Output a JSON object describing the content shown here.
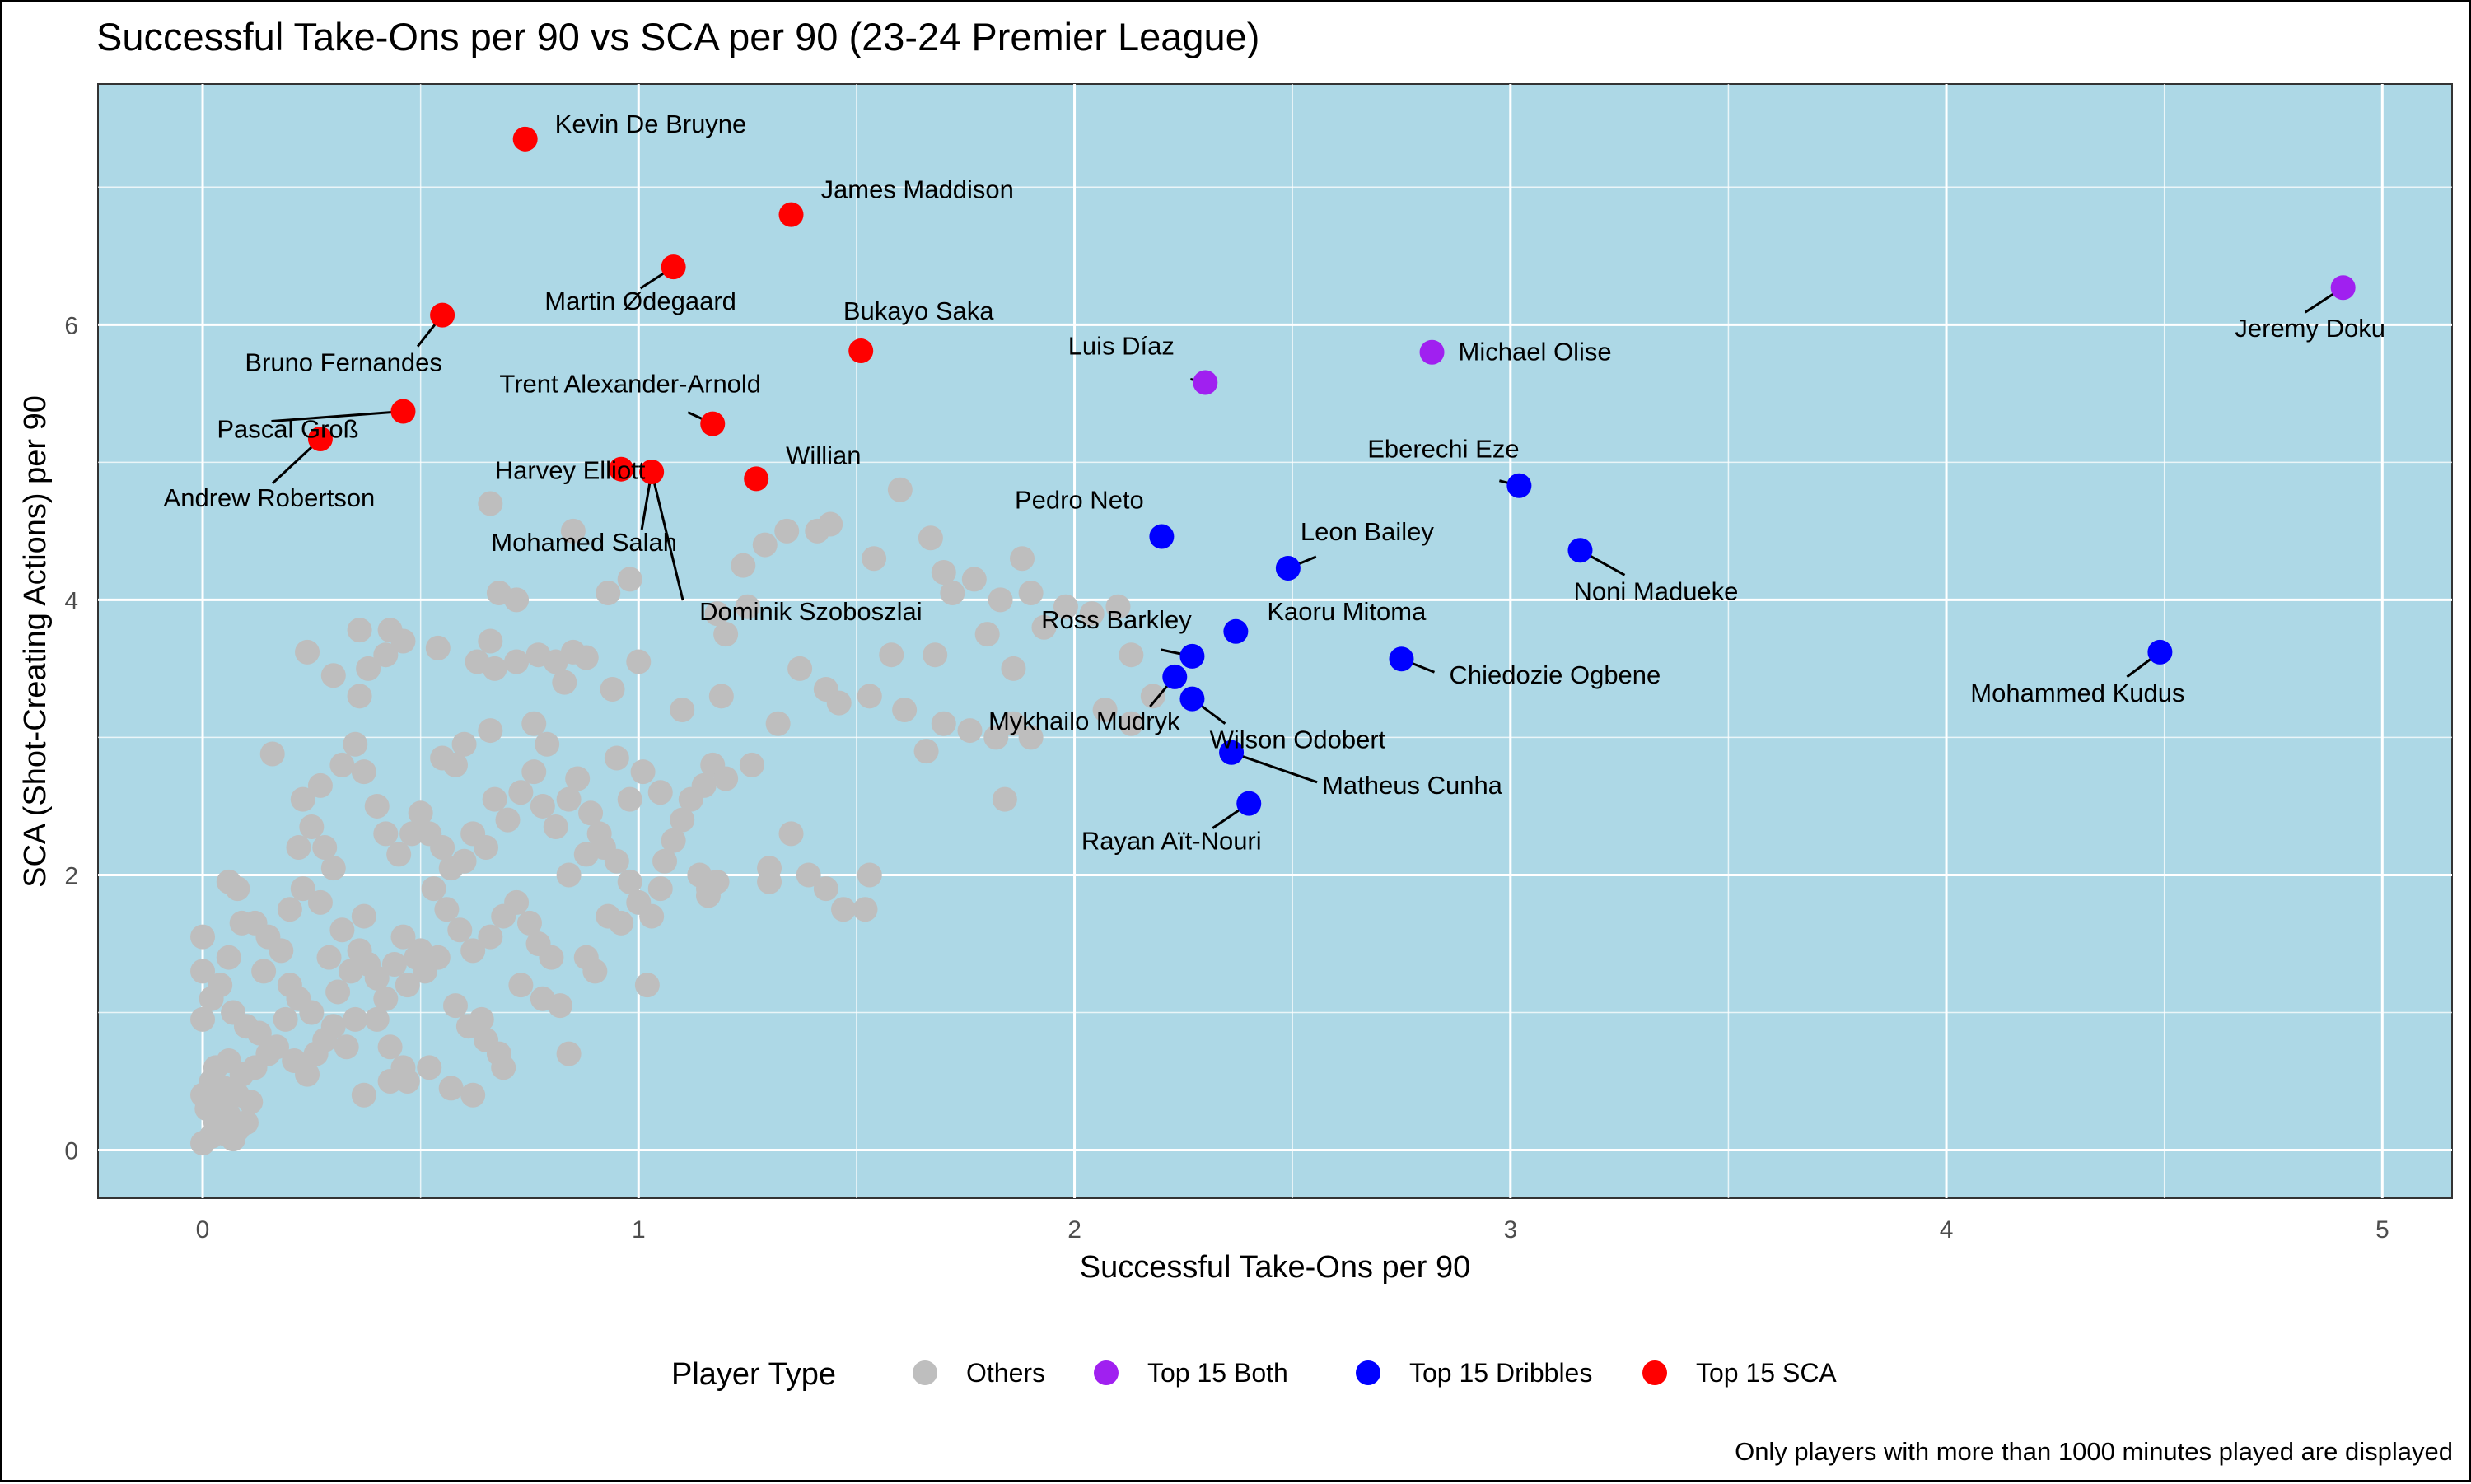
{
  "chart_data": {
    "type": "scatter",
    "title": "Successful Take-Ons per 90 vs SCA per 90 (23-24 Premier League)",
    "xlabel": "Successful Take-Ons per 90",
    "ylabel": "SCA (Shot-Creating Actions) per 90",
    "xlim": [
      -0.24,
      5.16
    ],
    "ylim": [
      -0.35,
      7.75
    ],
    "xticks": [
      0,
      1,
      2,
      3,
      4,
      5
    ],
    "yticks": [
      0,
      2,
      4,
      6
    ],
    "grid": true,
    "panel_background": "#add8e6",
    "legend": {
      "title": "Player Type",
      "position": "bottom",
      "entries": [
        {
          "label": "Others",
          "color": "#bebebe"
        },
        {
          "label": "Top 15 Both",
          "color": "#a020f0"
        },
        {
          "label": "Top 15 Dribbles",
          "color": "#0000ff"
        },
        {
          "label": "Top 15 SCA",
          "color": "#ff0000"
        }
      ]
    },
    "caption": "Only players with more than 1000 minutes played are displayed",
    "labeled_points": [
      {
        "name": "Kevin De Bruyne",
        "x": 0.74,
        "y": 7.35,
        "group": "Top 15 SCA"
      },
      {
        "name": "James Maddison",
        "x": 1.35,
        "y": 6.8,
        "group": "Top 15 SCA"
      },
      {
        "name": "Martin Ødegaard",
        "x": 1.08,
        "y": 6.42,
        "group": "Top 15 SCA"
      },
      {
        "name": "Bruno Fernandes",
        "x": 0.55,
        "y": 6.07,
        "group": "Top 15 SCA"
      },
      {
        "name": "Bukayo Saka",
        "x": 1.51,
        "y": 5.81,
        "group": "Top 15 SCA"
      },
      {
        "name": "Trent Alexander-Arnold",
        "x": 1.17,
        "y": 5.28,
        "group": "Top 15 SCA"
      },
      {
        "name": "Pascal Groß",
        "x": 0.46,
        "y": 5.37,
        "group": "Top 15 SCA"
      },
      {
        "name": "Andrew Robertson",
        "x": 0.27,
        "y": 5.17,
        "group": "Top 15 SCA"
      },
      {
        "name": "Harvey Elliott",
        "x": 0.96,
        "y": 4.95,
        "group": "Top 15 SCA"
      },
      {
        "name": "Mohamed Salah",
        "x": 1.03,
        "y": 4.93,
        "group": "Top 15 SCA"
      },
      {
        "name": "Dominik Szoboszlai",
        "x": 1.03,
        "y": 4.93,
        "group": "Top 15 SCA"
      },
      {
        "name": "Willian",
        "x": 1.27,
        "y": 4.88,
        "group": "Top 15 SCA"
      },
      {
        "name": "Luis Díaz",
        "x": 2.3,
        "y": 5.58,
        "group": "Top 15 Both"
      },
      {
        "name": "Michael Olise",
        "x": 2.82,
        "y": 5.8,
        "group": "Top 15 Both"
      },
      {
        "name": "Jeremy Doku",
        "x": 4.91,
        "y": 6.27,
        "group": "Top 15 Both"
      },
      {
        "name": "Pedro Neto",
        "x": 2.2,
        "y": 4.46,
        "group": "Top 15 Dribbles"
      },
      {
        "name": "Eberechi Eze",
        "x": 3.02,
        "y": 4.83,
        "group": "Top 15 Dribbles"
      },
      {
        "name": "Leon Bailey",
        "x": 2.49,
        "y": 4.23,
        "group": "Top 15 Dribbles"
      },
      {
        "name": "Noni Madueke",
        "x": 3.16,
        "y": 4.36,
        "group": "Top 15 Dribbles"
      },
      {
        "name": "Kaoru Mitoma",
        "x": 2.37,
        "y": 3.77,
        "group": "Top 15 Dribbles"
      },
      {
        "name": "Ross Barkley",
        "x": 2.27,
        "y": 3.59,
        "group": "Top 15 Dribbles"
      },
      {
        "name": "Chiedozie Ogbene",
        "x": 2.75,
        "y": 3.57,
        "group": "Top 15 Dribbles"
      },
      {
        "name": "Mohammed Kudus",
        "x": 4.49,
        "y": 3.62,
        "group": "Top 15 Dribbles"
      },
      {
        "name": "Mykhailo Mudryk",
        "x": 2.23,
        "y": 3.44,
        "group": "Top 15 Dribbles"
      },
      {
        "name": "Wilson Odobert",
        "x": 2.27,
        "y": 3.28,
        "group": "Top 15 Dribbles"
      },
      {
        "name": "Matheus Cunha",
        "x": 2.36,
        "y": 2.89,
        "group": "Top 15 Dribbles"
      },
      {
        "name": "Rayan Aït-Nouri",
        "x": 2.4,
        "y": 2.52,
        "group": "Top 15 Dribbles"
      }
    ],
    "other_points": [
      [
        0.0,
        0.05
      ],
      [
        0.02,
        0.1
      ],
      [
        0.03,
        0.2
      ],
      [
        0.05,
        0.12
      ],
      [
        0.07,
        0.08
      ],
      [
        0.01,
        0.3
      ],
      [
        0.04,
        0.35
      ],
      [
        0.06,
        0.25
      ],
      [
        0.08,
        0.15
      ],
      [
        0.1,
        0.2
      ],
      [
        0.0,
        0.4
      ],
      [
        0.02,
        0.5
      ],
      [
        0.05,
        0.45
      ],
      [
        0.08,
        0.4
      ],
      [
        0.11,
        0.35
      ],
      [
        0.03,
        0.6
      ],
      [
        0.06,
        0.65
      ],
      [
        0.09,
        0.55
      ],
      [
        0.12,
        0.6
      ],
      [
        0.15,
        0.7
      ],
      [
        0.0,
        0.95
      ],
      [
        0.02,
        1.1
      ],
      [
        0.04,
        1.2
      ],
      [
        0.0,
        1.3
      ],
      [
        0.0,
        1.55
      ],
      [
        0.07,
        1.0
      ],
      [
        0.1,
        0.9
      ],
      [
        0.13,
        0.85
      ],
      [
        0.06,
        1.4
      ],
      [
        0.09,
        1.65
      ],
      [
        0.06,
        1.95
      ],
      [
        0.08,
        1.9
      ],
      [
        0.12,
        1.65
      ],
      [
        0.15,
        1.55
      ],
      [
        0.14,
        1.3
      ],
      [
        0.18,
        1.45
      ],
      [
        0.2,
        1.2
      ],
      [
        0.22,
        1.1
      ],
      [
        0.25,
        1.0
      ],
      [
        0.19,
        0.95
      ],
      [
        0.17,
        0.75
      ],
      [
        0.21,
        0.65
      ],
      [
        0.24,
        0.55
      ],
      [
        0.26,
        0.7
      ],
      [
        0.28,
        0.8
      ],
      [
        0.3,
        0.9
      ],
      [
        0.33,
        0.75
      ],
      [
        0.35,
        0.95
      ],
      [
        0.31,
        1.15
      ],
      [
        0.34,
        1.3
      ],
      [
        0.38,
        1.35
      ],
      [
        0.4,
        1.25
      ],
      [
        0.42,
        1.1
      ],
      [
        0.36,
        1.45
      ],
      [
        0.32,
        1.6
      ],
      [
        0.29,
        1.4
      ],
      [
        0.37,
        1.7
      ],
      [
        0.2,
        1.75
      ],
      [
        0.23,
        1.9
      ],
      [
        0.27,
        1.8
      ],
      [
        0.22,
        2.2
      ],
      [
        0.25,
        2.35
      ],
      [
        0.28,
        2.2
      ],
      [
        0.3,
        2.05
      ],
      [
        0.23,
        2.55
      ],
      [
        0.27,
        2.65
      ],
      [
        0.32,
        2.8
      ],
      [
        0.35,
        2.95
      ],
      [
        0.37,
        2.75
      ],
      [
        0.4,
        2.5
      ],
      [
        0.42,
        2.3
      ],
      [
        0.45,
        2.15
      ],
      [
        0.48,
        2.3
      ],
      [
        0.5,
        2.45
      ],
      [
        0.52,
        2.3
      ],
      [
        0.55,
        2.2
      ],
      [
        0.57,
        2.05
      ],
      [
        0.6,
        2.1
      ],
      [
        0.62,
        2.3
      ],
      [
        0.65,
        2.2
      ],
      [
        0.53,
        1.9
      ],
      [
        0.56,
        1.75
      ],
      [
        0.59,
        1.6
      ],
      [
        0.62,
        1.45
      ],
      [
        0.66,
        1.55
      ],
      [
        0.69,
        1.7
      ],
      [
        0.72,
        1.8
      ],
      [
        0.75,
        1.65
      ],
      [
        0.77,
        1.5
      ],
      [
        0.8,
        1.4
      ],
      [
        0.46,
        1.55
      ],
      [
        0.49,
        1.4
      ],
      [
        0.51,
        1.3
      ],
      [
        0.44,
        1.35
      ],
      [
        0.47,
        1.2
      ],
      [
        0.5,
        1.45
      ],
      [
        0.54,
        1.4
      ],
      [
        0.58,
        1.05
      ],
      [
        0.61,
        0.9
      ],
      [
        0.64,
        0.95
      ],
      [
        0.4,
        0.95
      ],
      [
        0.43,
        0.75
      ],
      [
        0.46,
        0.6
      ],
      [
        0.43,
        0.5
      ],
      [
        0.37,
        0.4
      ],
      [
        0.57,
        0.45
      ],
      [
        0.68,
        0.7
      ],
      [
        0.73,
        1.2
      ],
      [
        0.78,
        1.1
      ],
      [
        0.82,
        1.05
      ],
      [
        0.67,
        2.55
      ],
      [
        0.7,
        2.4
      ],
      [
        0.73,
        2.6
      ],
      [
        0.76,
        2.75
      ],
      [
        0.78,
        2.5
      ],
      [
        0.81,
        2.35
      ],
      [
        0.84,
        2.55
      ],
      [
        0.86,
        2.7
      ],
      [
        0.89,
        2.45
      ],
      [
        0.91,
        2.3
      ],
      [
        0.84,
        2.0
      ],
      [
        0.88,
        2.15
      ],
      [
        0.92,
        2.2
      ],
      [
        0.95,
        2.1
      ],
      [
        0.98,
        1.95
      ],
      [
        1.0,
        1.8
      ],
      [
        1.03,
        1.7
      ],
      [
        0.93,
        1.7
      ],
      [
        0.96,
        1.65
      ],
      [
        1.05,
        1.9
      ],
      [
        0.9,
        1.3
      ],
      [
        0.88,
        1.4
      ],
      [
        1.02,
        1.2
      ],
      [
        1.06,
        2.1
      ],
      [
        1.08,
        2.25
      ],
      [
        1.1,
        2.4
      ],
      [
        1.12,
        2.55
      ],
      [
        1.15,
        2.65
      ],
      [
        1.17,
        2.8
      ],
      [
        1.2,
        2.7
      ],
      [
        1.14,
        2.0
      ],
      [
        1.18,
        1.95
      ],
      [
        1.16,
        1.9
      ],
      [
        1.05,
        2.6
      ],
      [
        1.01,
        2.75
      ],
      [
        0.98,
        2.55
      ],
      [
        0.95,
        2.85
      ],
      [
        0.79,
        2.95
      ],
      [
        0.76,
        3.1
      ],
      [
        0.66,
        3.05
      ],
      [
        0.55,
        2.85
      ],
      [
        0.58,
        2.8
      ],
      [
        0.6,
        2.95
      ],
      [
        0.38,
        3.5
      ],
      [
        0.36,
        3.3
      ],
      [
        0.3,
        3.45
      ],
      [
        0.42,
        3.6
      ],
      [
        0.46,
        3.7
      ],
      [
        0.54,
        3.65
      ],
      [
        0.63,
        3.55
      ],
      [
        0.67,
        3.5
      ],
      [
        0.72,
        3.55
      ],
      [
        0.77,
        3.6
      ],
      [
        0.81,
        3.55
      ],
      [
        0.85,
        3.62
      ],
      [
        0.88,
        3.58
      ],
      [
        0.94,
        3.35
      ],
      [
        1.0,
        3.55
      ],
      [
        1.1,
        3.2
      ],
      [
        1.19,
        3.3
      ],
      [
        0.24,
        3.62
      ],
      [
        0.16,
        2.88
      ],
      [
        0.36,
        3.78
      ],
      [
        0.43,
        3.78
      ],
      [
        0.66,
        3.7
      ],
      [
        0.83,
        3.4
      ],
      [
        1.26,
        2.8
      ],
      [
        1.32,
        3.1
      ],
      [
        1.37,
        3.5
      ],
      [
        1.43,
        3.35
      ],
      [
        1.46,
        3.25
      ],
      [
        1.53,
        3.3
      ],
      [
        1.58,
        3.6
      ],
      [
        1.61,
        3.2
      ],
      [
        1.66,
        2.9
      ],
      [
        1.68,
        3.6
      ],
      [
        1.7,
        3.1
      ],
      [
        1.35,
        2.3
      ],
      [
        1.3,
        2.05
      ],
      [
        1.39,
        2.0
      ],
      [
        1.43,
        1.9
      ],
      [
        1.47,
        1.75
      ],
      [
        1.52,
        1.75
      ],
      [
        1.53,
        2.0
      ],
      [
        1.3,
        1.95
      ],
      [
        1.16,
        1.85
      ],
      [
        1.18,
        3.9
      ],
      [
        1.2,
        3.75
      ],
      [
        1.25,
        3.95
      ],
      [
        1.24,
        4.25
      ],
      [
        1.29,
        4.4
      ],
      [
        1.34,
        4.5
      ],
      [
        1.41,
        4.5
      ],
      [
        1.44,
        4.55
      ],
      [
        1.54,
        4.3
      ],
      [
        1.6,
        4.8
      ],
      [
        1.67,
        4.45
      ],
      [
        1.7,
        4.2
      ],
      [
        1.72,
        4.05
      ],
      [
        1.77,
        4.15
      ],
      [
        1.8,
        3.75
      ],
      [
        1.83,
        4.0
      ],
      [
        1.86,
        3.5
      ],
      [
        1.88,
        4.3
      ],
      [
        1.9,
        4.05
      ],
      [
        1.93,
        3.8
      ],
      [
        1.98,
        3.95
      ],
      [
        2.04,
        3.9
      ],
      [
        2.1,
        3.95
      ],
      [
        2.13,
        3.6
      ],
      [
        2.18,
        3.3
      ],
      [
        2.13,
        3.1
      ],
      [
        2.07,
        3.2
      ],
      [
        1.86,
        3.1
      ],
      [
        1.82,
        3.0
      ],
      [
        1.9,
        3.0
      ],
      [
        1.76,
        3.05
      ],
      [
        1.84,
        2.55
      ],
      [
        0.66,
        4.7
      ],
      [
        0.68,
        4.05
      ],
      [
        0.72,
        4.0
      ],
      [
        0.85,
        4.5
      ],
      [
        0.93,
        4.05
      ],
      [
        0.98,
        4.15
      ],
      [
        0.84,
        0.7
      ],
      [
        0.65,
        0.8
      ],
      [
        0.52,
        0.6
      ],
      [
        0.47,
        0.5
      ],
      [
        0.62,
        0.4
      ],
      [
        0.69,
        0.6
      ]
    ]
  }
}
